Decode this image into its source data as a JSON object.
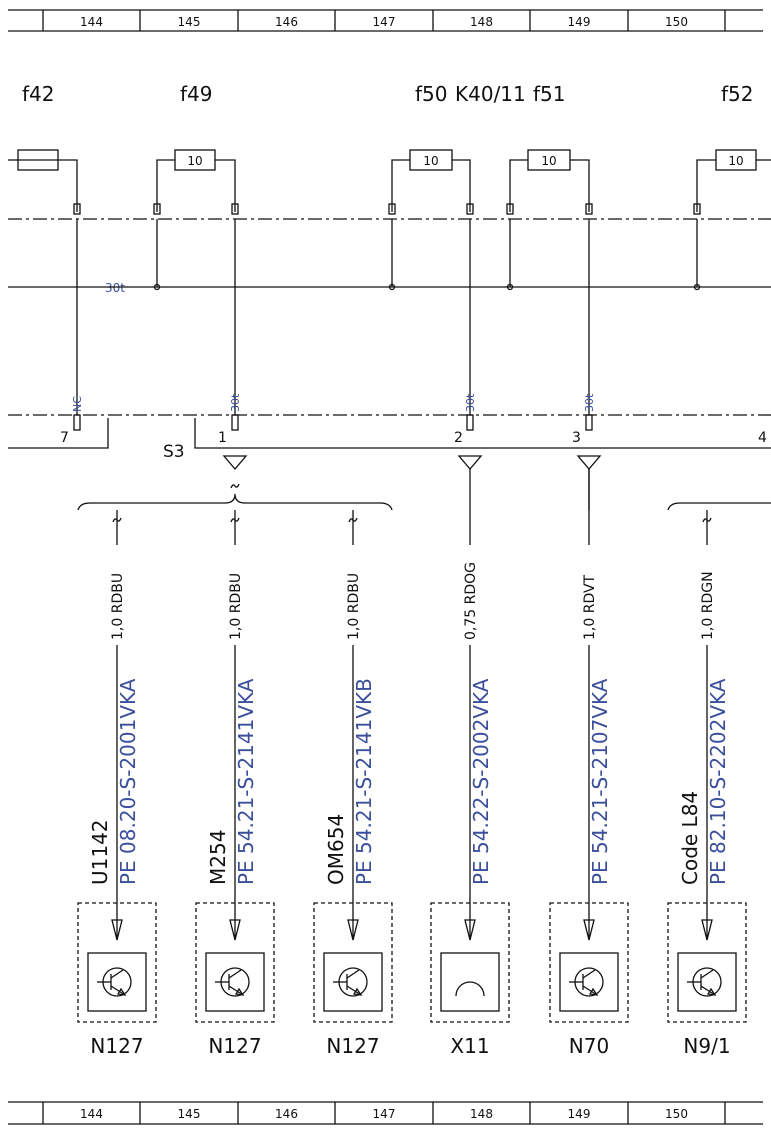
{
  "ruler": {
    "top": [
      144,
      145,
      146,
      147,
      148,
      149,
      150
    ],
    "bottom": [
      144,
      145,
      146,
      147,
      148,
      149,
      150
    ]
  },
  "fuses": [
    {
      "label": "f42"
    },
    {
      "label": "f49",
      "rating": "10"
    },
    {
      "label": "f50",
      "rating": "10"
    },
    {
      "label": "f51",
      "rating": "10"
    },
    {
      "label": "f52",
      "rating": "10"
    }
  ],
  "relay": "K40/11",
  "bus_label": "30t",
  "pins": [
    {
      "signal": "NC",
      "number": "7"
    },
    {
      "signal": "30t",
      "number": "1"
    },
    {
      "signal": "30t",
      "number": "2"
    },
    {
      "signal": "30t",
      "number": "3"
    },
    {
      "number": "4"
    }
  ],
  "connector": "S3",
  "branches": [
    {
      "wire": "1,0 RDBU",
      "ref": "PE 08.20-S-2001VKA",
      "code": "U1142",
      "component": "N127"
    },
    {
      "wire": "1,0 RDBU",
      "ref": "PE 54.21-S-2141VKA",
      "code": "M254",
      "component": "N127"
    },
    {
      "wire": "1,0 RDBU",
      "ref": "PE 54.21-S-2141VKB",
      "code": "OM654",
      "component": "N127"
    },
    {
      "wire": "0,75 RDOG",
      "ref": "PE 54.22-S-2002VKA",
      "component": "X11"
    },
    {
      "wire": "1,0 RDVT",
      "ref": "PE 54.21-S-2107VKA",
      "component": "N70"
    },
    {
      "wire": "1,0 RDGN",
      "ref": "PE 82.10-S-2202VKA",
      "code": "Code L84",
      "component": "N9/1"
    }
  ]
}
